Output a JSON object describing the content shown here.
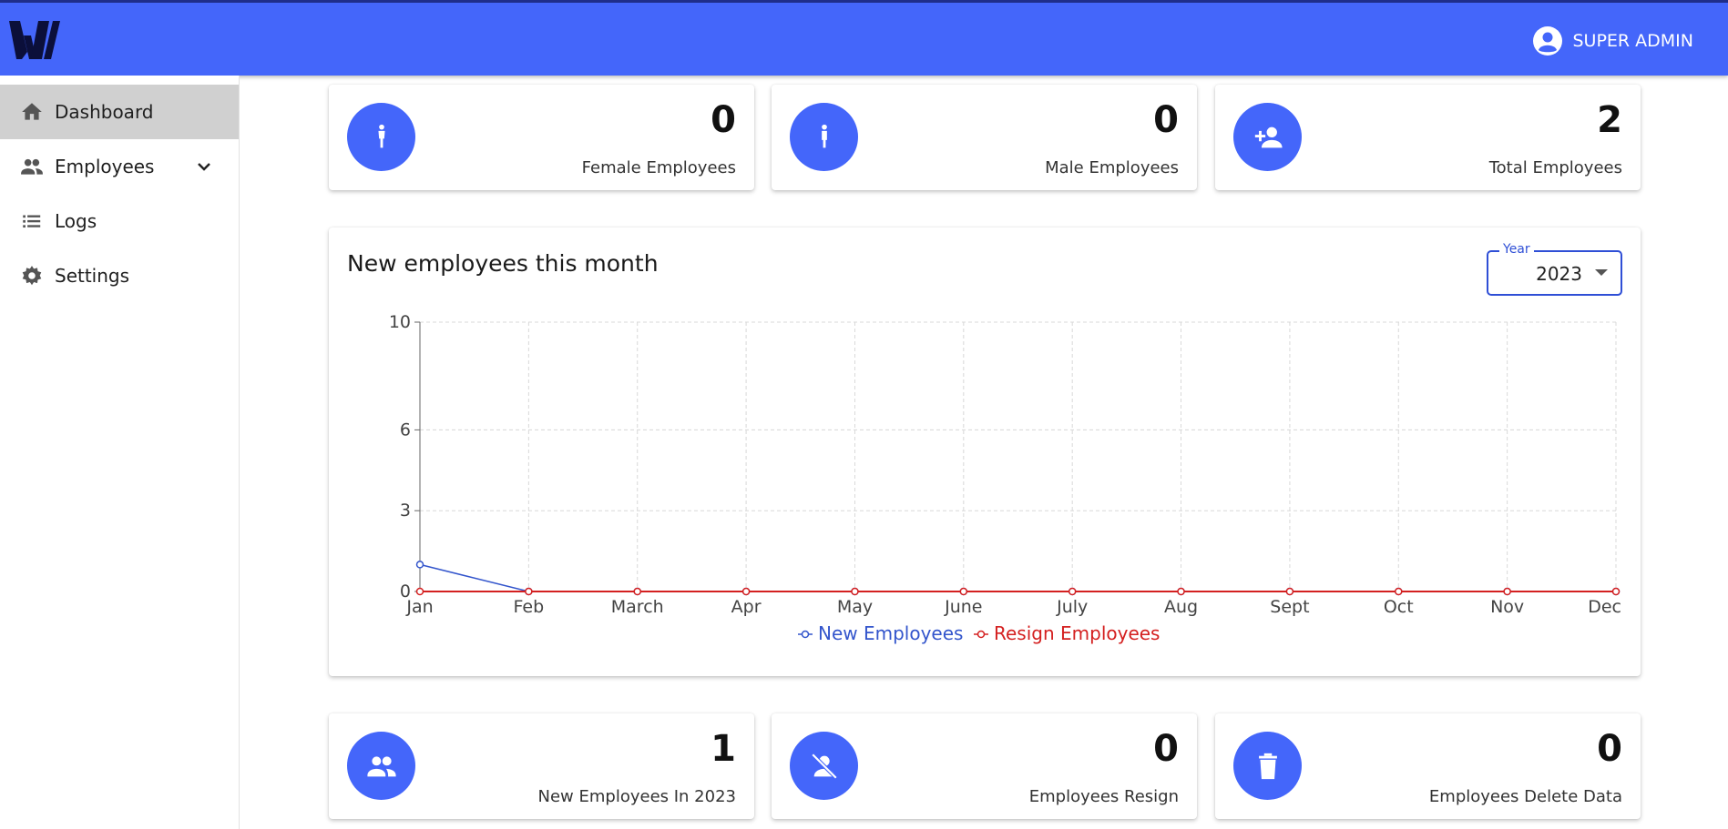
{
  "header": {
    "logo_icon": "w-logo-icon",
    "user_label": "SUPER ADMIN",
    "user_icon": "account-circle-icon",
    "bg_color": "#4466fa"
  },
  "sidebar": {
    "items": [
      {
        "label": "Dashboard",
        "icon": "home-icon",
        "active": true
      },
      {
        "label": "Employees",
        "icon": "people-icon",
        "expandable": true
      },
      {
        "label": "Logs",
        "icon": "list-icon"
      },
      {
        "label": "Settings",
        "icon": "gear-icon"
      }
    ]
  },
  "stats_top": [
    {
      "value": "0",
      "label": "Female Employees",
      "icon": "female-icon"
    },
    {
      "value": "0",
      "label": "Male Employees",
      "icon": "male-icon"
    },
    {
      "value": "2",
      "label": "Total Employees",
      "icon": "person-add-icon"
    }
  ],
  "stats_bottom": [
    {
      "value": "1",
      "label": "New Employees In 2023",
      "icon": "group-icon"
    },
    {
      "value": "0",
      "label": "Employees Resign",
      "icon": "person-off-icon"
    },
    {
      "value": "0",
      "label": "Employees Delete Data",
      "icon": "trash-icon"
    }
  ],
  "chart_card": {
    "title": "New employees this month",
    "year_label": "Year",
    "year_value": "2023"
  },
  "chart_data": {
    "type": "line",
    "title": "New employees this month",
    "categories": [
      "Jan",
      "Feb",
      "March",
      "Apr",
      "May",
      "June",
      "July",
      "Aug",
      "Sept",
      "Oct",
      "Nov",
      "Dec"
    ],
    "series": [
      {
        "name": "New Employees",
        "color": "#3355cc",
        "values": [
          1,
          0,
          0,
          0,
          0,
          0,
          0,
          0,
          0,
          0,
          0,
          0
        ]
      },
      {
        "name": "Resign Employees",
        "color": "#d42020",
        "values": [
          0,
          0,
          0,
          0,
          0,
          0,
          0,
          0,
          0,
          0,
          0,
          0
        ]
      }
    ],
    "yticks": [
      0,
      3,
      6,
      10
    ],
    "ylim": [
      0,
      10
    ],
    "grid": true,
    "legend_position": "bottom-center"
  }
}
